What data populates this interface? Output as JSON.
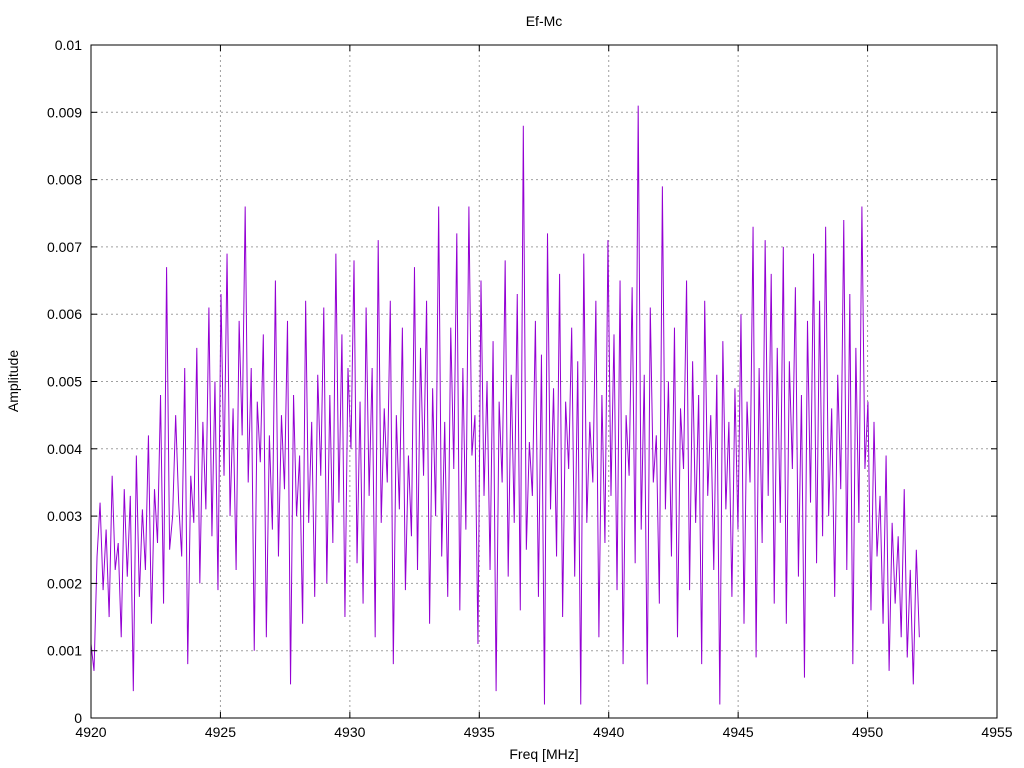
{
  "chart_data": {
    "type": "line",
    "title": "Ef-Mc",
    "xlabel": "Freq [MHz]",
    "ylabel": "Amplitude",
    "xlim": [
      4920,
      4955
    ],
    "ylim": [
      0,
      0.01
    ],
    "x_ticks": [
      "4920",
      "4925",
      "4930",
      "4935",
      "4940",
      "4945",
      "4950",
      "4955"
    ],
    "y_ticks": [
      "0",
      "0.001",
      "0.002",
      "0.003",
      "0.004",
      "0.005",
      "0.006",
      "0.007",
      "0.008",
      "0.009",
      "0.01"
    ],
    "grid": true,
    "legend": "none",
    "series": [
      {
        "color": "#9400d3",
        "x_range": [
          4920.0,
          4952.0
        ],
        "values": [
          0.0011,
          0.0007,
          0.0024,
          0.0032,
          0.0019,
          0.0028,
          0.0015,
          0.0036,
          0.0022,
          0.0026,
          0.0012,
          0.0034,
          0.0021,
          0.0033,
          0.0004,
          0.0039,
          0.0018,
          0.0031,
          0.0022,
          0.0042,
          0.0014,
          0.0034,
          0.0026,
          0.0048,
          0.0017,
          0.0067,
          0.0025,
          0.003,
          0.0045,
          0.0032,
          0.0024,
          0.0052,
          0.0008,
          0.0036,
          0.0029,
          0.0055,
          0.002,
          0.0044,
          0.0031,
          0.0061,
          0.0027,
          0.005,
          0.0019,
          0.0063,
          0.0036,
          0.0069,
          0.003,
          0.0046,
          0.0022,
          0.0059,
          0.0042,
          0.0076,
          0.0035,
          0.0052,
          0.001,
          0.0047,
          0.0038,
          0.0057,
          0.0012,
          0.0042,
          0.0028,
          0.0065,
          0.0024,
          0.0045,
          0.0034,
          0.0059,
          0.0005,
          0.0048,
          0.003,
          0.0039,
          0.0014,
          0.0062,
          0.0029,
          0.0044,
          0.0018,
          0.0051,
          0.0036,
          0.0061,
          0.002,
          0.0048,
          0.0026,
          0.0069,
          0.0032,
          0.0057,
          0.0015,
          0.0052,
          0.004,
          0.0068,
          0.0023,
          0.0047,
          0.0017,
          0.0061,
          0.0033,
          0.0052,
          0.0012,
          0.0071,
          0.0029,
          0.0046,
          0.0035,
          0.0062,
          0.0008,
          0.0045,
          0.0031,
          0.0058,
          0.0019,
          0.0039,
          0.0027,
          0.0067,
          0.0022,
          0.0055,
          0.0036,
          0.0062,
          0.0014,
          0.0049,
          0.003,
          0.0076,
          0.0024,
          0.0044,
          0.0018,
          0.0058,
          0.0037,
          0.0072,
          0.0016,
          0.0052,
          0.0028,
          0.0076,
          0.0039,
          0.0045,
          0.0011,
          0.0065,
          0.0033,
          0.005,
          0.0022,
          0.0056,
          0.0004,
          0.0047,
          0.0035,
          0.0068,
          0.0021,
          0.0051,
          0.0029,
          0.0063,
          0.0016,
          0.0088,
          0.0025,
          0.0041,
          0.0033,
          0.0059,
          0.0018,
          0.0054,
          0.0002,
          0.0072,
          0.0031,
          0.0049,
          0.0024,
          0.0066,
          0.0015,
          0.0047,
          0.0037,
          0.0058,
          0.0021,
          0.0053,
          0.0002,
          0.0069,
          0.0029,
          0.0044,
          0.0035,
          0.0062,
          0.0012,
          0.0048,
          0.0026,
          0.0071,
          0.0033,
          0.0057,
          0.0019,
          0.0065,
          0.0008,
          0.0045,
          0.0036,
          0.0064,
          0.0023,
          0.0091,
          0.0028,
          0.0051,
          0.0005,
          0.0061,
          0.0035,
          0.0042,
          0.0017,
          0.0079,
          0.0031,
          0.005,
          0.0024,
          0.0058,
          0.0012,
          0.0046,
          0.0037,
          0.0065,
          0.0019,
          0.0053,
          0.0029,
          0.0048,
          0.0008,
          0.0062,
          0.0033,
          0.0045,
          0.0022,
          0.0051,
          0.0002,
          0.0056,
          0.0031,
          0.0044,
          0.0018,
          0.0049,
          0.0028,
          0.006,
          0.0014,
          0.0047,
          0.0035,
          0.0073,
          0.0009,
          0.0052,
          0.0026,
          0.0071,
          0.0033,
          0.0066,
          0.0017,
          0.0055,
          0.0029,
          0.007,
          0.0014,
          0.0053,
          0.0037,
          0.0064,
          0.0021,
          0.0048,
          0.0006,
          0.0059,
          0.0032,
          0.0069,
          0.0023,
          0.0062,
          0.0027,
          0.0073,
          0.003,
          0.0046,
          0.0018,
          0.0051,
          0.0034,
          0.0074,
          0.0022,
          0.0063,
          0.0008,
          0.0055,
          0.0029,
          0.0076,
          0.0037,
          0.0047,
          0.0016,
          0.0044,
          0.0024,
          0.0033,
          0.0014,
          0.0039,
          0.0007,
          0.0029,
          0.0017,
          0.0027,
          0.0012,
          0.0034,
          0.0009,
          0.0022,
          0.0005,
          0.0025,
          0.0012
        ]
      }
    ]
  }
}
